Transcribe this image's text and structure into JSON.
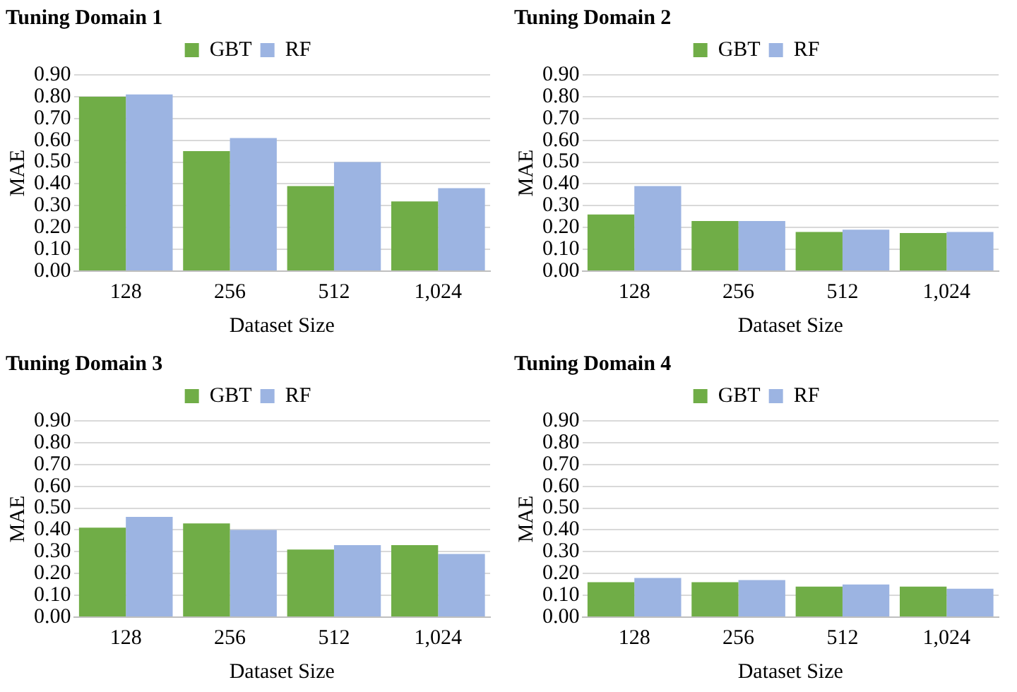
{
  "chart_data": [
    {
      "type": "bar",
      "title": "Tuning Domain 1",
      "xlabel": "Dataset Size",
      "ylabel": "MAE",
      "categories": [
        "128",
        "256",
        "512",
        "1,024"
      ],
      "series": [
        {
          "name": "GBT",
          "color": "#70ad47",
          "values": [
            0.8,
            0.55,
            0.39,
            0.32
          ]
        },
        {
          "name": "RF",
          "color": "#9cb4e2",
          "values": [
            0.81,
            0.61,
            0.5,
            0.38
          ]
        }
      ],
      "ylim": [
        0,
        0.9
      ],
      "yticks": [
        {
          "value": 0,
          "label": "0.00"
        },
        {
          "value": 0.1,
          "label": "0.10"
        },
        {
          "value": 0.2,
          "label": "0.20"
        },
        {
          "value": 0.3,
          "label": "0.30"
        },
        {
          "value": 0.4,
          "label": "0.40"
        },
        {
          "value": 0.5,
          "label": "0.50"
        },
        {
          "value": 0.6,
          "label": "0.60"
        },
        {
          "value": 0.7,
          "label": "0.70"
        },
        {
          "value": 0.8,
          "label": "0.80"
        },
        {
          "value": 0.9,
          "label": "0.90"
        }
      ],
      "grid": "y",
      "legend": "top"
    },
    {
      "type": "bar",
      "title": "Tuning Domain 2",
      "xlabel": "Dataset Size",
      "ylabel": "MAE",
      "categories": [
        "128",
        "256",
        "512",
        "1,024"
      ],
      "series": [
        {
          "name": "GBT",
          "color": "#70ad47",
          "values": [
            0.26,
            0.23,
            0.18,
            0.175
          ]
        },
        {
          "name": "RF",
          "color": "#9cb4e2",
          "values": [
            0.39,
            0.23,
            0.19,
            0.18
          ]
        }
      ],
      "ylim": [
        0,
        0.9
      ],
      "yticks": [
        {
          "value": 0,
          "label": "0.00"
        },
        {
          "value": 0.1,
          "label": "0.10"
        },
        {
          "value": 0.2,
          "label": "0.20"
        },
        {
          "value": 0.3,
          "label": "0.30"
        },
        {
          "value": 0.4,
          "label": "0.40"
        },
        {
          "value": 0.5,
          "label": "0.50"
        },
        {
          "value": 0.6,
          "label": "0.60"
        },
        {
          "value": 0.7,
          "label": "0.70"
        },
        {
          "value": 0.8,
          "label": "0.80"
        },
        {
          "value": 0.9,
          "label": "0.90"
        }
      ],
      "grid": "y",
      "legend": "top"
    },
    {
      "type": "bar",
      "title": "Tuning Domain 3",
      "xlabel": "Dataset Size",
      "ylabel": "MAE",
      "categories": [
        "128",
        "256",
        "512",
        "1,024"
      ],
      "series": [
        {
          "name": "GBT",
          "color": "#70ad47",
          "values": [
            0.41,
            0.43,
            0.31,
            0.33
          ]
        },
        {
          "name": "RF",
          "color": "#9cb4e2",
          "values": [
            0.46,
            0.4,
            0.33,
            0.29
          ]
        }
      ],
      "ylim": [
        0,
        0.9
      ],
      "yticks": [
        {
          "value": 0,
          "label": "0.00"
        },
        {
          "value": 0.1,
          "label": "0.10"
        },
        {
          "value": 0.2,
          "label": "0.20"
        },
        {
          "value": 0.3,
          "label": "0.30"
        },
        {
          "value": 0.4,
          "label": "0.40"
        },
        {
          "value": 0.5,
          "label": "0.50"
        },
        {
          "value": 0.6,
          "label": "0.60"
        },
        {
          "value": 0.7,
          "label": "0.70"
        },
        {
          "value": 0.8,
          "label": "0.80"
        },
        {
          "value": 0.9,
          "label": "0.90"
        }
      ],
      "grid": "y",
      "legend": "top"
    },
    {
      "type": "bar",
      "title": "Tuning Domain 4",
      "xlabel": "Dataset Size",
      "ylabel": "MAE",
      "categories": [
        "128",
        "256",
        "512",
        "1,024"
      ],
      "series": [
        {
          "name": "GBT",
          "color": "#70ad47",
          "values": [
            0.16,
            0.16,
            0.14,
            0.14
          ]
        },
        {
          "name": "RF",
          "color": "#9cb4e2",
          "values": [
            0.18,
            0.17,
            0.15,
            0.13
          ]
        }
      ],
      "ylim": [
        0,
        0.9
      ],
      "yticks": [
        {
          "value": 0,
          "label": "0.00"
        },
        {
          "value": 0.1,
          "label": "0.10"
        },
        {
          "value": 0.2,
          "label": "0.20"
        },
        {
          "value": 0.3,
          "label": "0.30"
        },
        {
          "value": 0.4,
          "label": "0.40"
        },
        {
          "value": 0.5,
          "label": "0.50"
        },
        {
          "value": 0.6,
          "label": "0.60"
        },
        {
          "value": 0.7,
          "label": "0.70"
        },
        {
          "value": 0.8,
          "label": "0.80"
        },
        {
          "value": 0.9,
          "label": "0.90"
        }
      ],
      "grid": "y",
      "legend": "top"
    }
  ]
}
